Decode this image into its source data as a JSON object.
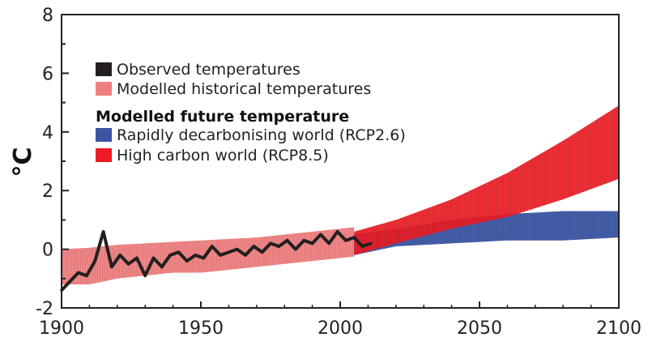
{
  "chart_data": {
    "type": "area",
    "title": "",
    "xlabel": "",
    "ylabel": "°C",
    "xlim": [
      1900,
      2100
    ],
    "ylim": [
      -2,
      8
    ],
    "x_ticks": [
      1900,
      1950,
      2000,
      2050,
      2100
    ],
    "y_ticks": [
      -2,
      0,
      2,
      4,
      6,
      8
    ],
    "grid": false,
    "legend": {
      "placement": "top-left",
      "heading": "Modelled future temperature",
      "entries": [
        {
          "key": "observed",
          "label": "Observed temperatures",
          "color": "#231f20"
        },
        {
          "key": "historical",
          "label": "Modelled historical temperatures",
          "color": "#f08080"
        },
        {
          "key": "rcp26",
          "label": "Rapidly decarbonising world (RCP2.6)",
          "color": "#3a55a4"
        },
        {
          "key": "rcp85",
          "label": "High carbon world (RCP8.5)",
          "color": "#ed1c24"
        }
      ]
    },
    "series": [
      {
        "key": "historical",
        "type": "band",
        "color": "#f08080",
        "x": [
          1900,
          1910,
          1920,
          1930,
          1940,
          1950,
          1960,
          1970,
          1980,
          1990,
          2000,
          2005
        ],
        "lower": [
          -1.2,
          -1.2,
          -1.0,
          -0.9,
          -0.8,
          -0.8,
          -0.7,
          -0.6,
          -0.5,
          -0.4,
          -0.3,
          -0.25
        ],
        "upper": [
          0.0,
          0.05,
          0.15,
          0.2,
          0.25,
          0.3,
          0.35,
          0.4,
          0.5,
          0.6,
          0.7,
          0.75
        ]
      },
      {
        "key": "observed",
        "type": "line",
        "color": "#231f20",
        "x": [
          1900,
          1903,
          1906,
          1909,
          1912,
          1915,
          1918,
          1921,
          1924,
          1927,
          1930,
          1933,
          1936,
          1939,
          1942,
          1945,
          1948,
          1951,
          1954,
          1957,
          1960,
          1963,
          1966,
          1969,
          1972,
          1975,
          1978,
          1981,
          1984,
          1987,
          1990,
          1993,
          1996,
          1999,
          2002,
          2005,
          2008,
          2011
        ],
        "y": [
          -1.4,
          -1.1,
          -0.8,
          -0.9,
          -0.4,
          0.6,
          -0.6,
          -0.2,
          -0.5,
          -0.3,
          -0.9,
          -0.3,
          -0.6,
          -0.2,
          -0.1,
          -0.4,
          -0.2,
          -0.3,
          0.1,
          -0.2,
          -0.1,
          0.0,
          -0.2,
          0.1,
          -0.1,
          0.2,
          0.1,
          0.3,
          0.0,
          0.3,
          0.2,
          0.5,
          0.2,
          0.6,
          0.3,
          0.4,
          0.1,
          0.2
        ]
      },
      {
        "key": "rcp26",
        "type": "band",
        "color": "#3a55a4",
        "x": [
          2005,
          2020,
          2040,
          2060,
          2080,
          2100
        ],
        "lower": [
          -0.2,
          0.1,
          0.2,
          0.3,
          0.3,
          0.4
        ],
        "upper": [
          0.5,
          0.7,
          1.0,
          1.2,
          1.3,
          1.3
        ]
      },
      {
        "key": "rcp85",
        "type": "band",
        "color": "#ed1c24",
        "x": [
          2005,
          2020,
          2040,
          2060,
          2080,
          2100
        ],
        "lower": [
          -0.2,
          0.2,
          0.7,
          1.1,
          1.7,
          2.4
        ],
        "upper": [
          0.6,
          1.0,
          1.7,
          2.6,
          3.7,
          4.9
        ]
      }
    ]
  }
}
